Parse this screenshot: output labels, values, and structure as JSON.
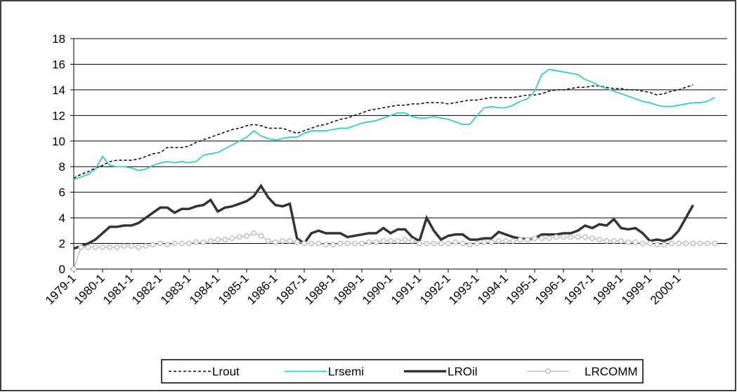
{
  "chart_data": {
    "type": "line",
    "categories": [
      "1979-1",
      null,
      null,
      null,
      "1980-1",
      null,
      null,
      null,
      "1981-1",
      null,
      null,
      null,
      "1982-1",
      null,
      null,
      null,
      "1983-1",
      null,
      null,
      null,
      "1984-1",
      null,
      null,
      null,
      "1985-1",
      null,
      null,
      null,
      "1986-1",
      null,
      null,
      null,
      "1987-1",
      null,
      null,
      null,
      "1988-1",
      null,
      null,
      null,
      "1989-1",
      null,
      null,
      null,
      "1990-1",
      null,
      null,
      null,
      "1991-1",
      null,
      null,
      null,
      "1992-1",
      null,
      null,
      null,
      "1993-1",
      null,
      null,
      null,
      "1994-1",
      null,
      null,
      null,
      "1995-1",
      null,
      null,
      null,
      "1996-1",
      null,
      null,
      null,
      "1997-1",
      null,
      null,
      null,
      "1998-1",
      null,
      null,
      null,
      "1999-1",
      null,
      null,
      null,
      "2000-1",
      null,
      null,
      null,
      null,
      null
    ],
    "series": [
      {
        "name": "Lrout",
        "color": "#000000",
        "line_style": "dashed",
        "line_width": 1.5,
        "values": [
          7.1,
          7.4,
          7.6,
          7.9,
          8.1,
          8.4,
          8.5,
          8.5,
          8.5,
          8.6,
          8.8,
          9.0,
          9.1,
          9.5,
          9.5,
          9.5,
          9.6,
          9.9,
          10.1,
          10.3,
          10.5,
          10.7,
          10.9,
          11.0,
          11.2,
          11.3,
          11.2,
          11.0,
          11.0,
          11.0,
          10.8,
          10.6,
          10.8,
          11.0,
          11.2,
          11.3,
          11.5,
          11.7,
          11.8,
          12.0,
          12.2,
          12.4,
          12.5,
          12.6,
          12.7,
          12.8,
          12.8,
          12.9,
          12.9,
          13.0,
          13.0,
          13.0,
          12.9,
          13.0,
          13.1,
          13.2,
          13.2,
          13.3,
          13.4,
          13.4,
          13.4,
          13.4,
          13.5,
          13.6,
          13.6,
          13.7,
          13.9,
          14.0,
          14.0,
          14.1,
          14.2,
          14.2,
          14.3,
          14.3,
          14.2,
          14.1,
          14.1,
          14.0,
          14.0,
          13.9,
          13.8,
          13.6,
          13.7,
          13.9,
          14.0,
          14.2,
          14.4,
          null,
          null,
          null
        ]
      },
      {
        "name": "Lrsemi",
        "color": "#33cccc",
        "line_style": "solid",
        "line_width": 1.8,
        "values": [
          7.0,
          7.2,
          7.4,
          7.8,
          8.8,
          8.1,
          8.0,
          8.0,
          7.9,
          7.7,
          7.8,
          8.1,
          8.3,
          8.4,
          8.3,
          8.4,
          8.3,
          8.4,
          8.9,
          9.0,
          9.1,
          9.4,
          9.7,
          10.0,
          10.3,
          10.8,
          10.4,
          10.2,
          10.1,
          10.2,
          10.3,
          10.3,
          10.6,
          10.8,
          10.8,
          10.8,
          10.9,
          11.0,
          11.0,
          11.2,
          11.4,
          11.5,
          11.6,
          11.8,
          12.0,
          12.2,
          12.2,
          11.9,
          11.8,
          11.8,
          11.9,
          11.8,
          11.7,
          11.5,
          11.3,
          11.3,
          12.0,
          12.6,
          12.7,
          12.6,
          12.6,
          12.8,
          13.1,
          13.3,
          13.9,
          15.2,
          15.6,
          15.5,
          15.4,
          15.3,
          15.2,
          14.8,
          14.6,
          14.3,
          14.1,
          13.9,
          13.7,
          13.5,
          13.3,
          13.1,
          13.0,
          12.8,
          12.7,
          12.7,
          12.8,
          12.9,
          13.0,
          13.0,
          13.1,
          13.4
        ]
      },
      {
        "name": "LROil",
        "color": "#333333",
        "line_style": "solid",
        "line_width": 3.5,
        "values": [
          1.6,
          1.8,
          2.0,
          2.3,
          2.8,
          3.3,
          3.3,
          3.4,
          3.4,
          3.6,
          4.0,
          4.4,
          4.8,
          4.8,
          4.4,
          4.7,
          4.7,
          4.9,
          5.0,
          5.4,
          4.5,
          4.8,
          4.9,
          5.1,
          5.3,
          5.7,
          6.5,
          5.6,
          5.0,
          4.9,
          5.1,
          2.4,
          2.0,
          2.8,
          3.0,
          2.8,
          2.8,
          2.8,
          2.5,
          2.6,
          2.7,
          2.8,
          2.8,
          3.2,
          2.8,
          3.1,
          3.1,
          2.5,
          2.2,
          4.0,
          3.0,
          2.3,
          2.6,
          2.7,
          2.7,
          2.3,
          2.3,
          2.4,
          2.4,
          2.9,
          2.7,
          2.5,
          2.4,
          2.3,
          2.4,
          2.7,
          2.7,
          2.7,
          2.8,
          2.8,
          3.0,
          3.4,
          3.2,
          3.5,
          3.4,
          3.9,
          3.2,
          3.1,
          3.2,
          2.8,
          2.2,
          2.3,
          2.2,
          2.4,
          3.0,
          4.0,
          5.0,
          null,
          null,
          null
        ]
      },
      {
        "name": "LRCOMM",
        "color": "#c0c0c0",
        "line_style": "solid",
        "line_width": 1.5,
        "marker": "circle",
        "values": [
          0,
          1.7,
          1.7,
          1.7,
          1.7,
          1.7,
          1.7,
          1.8,
          1.8,
          1.7,
          1.8,
          1.9,
          2.0,
          1.9,
          2.0,
          2.0,
          2.0,
          2.1,
          2.1,
          2.2,
          2.3,
          2.3,
          2.4,
          2.5,
          2.6,
          2.8,
          2.6,
          2.2,
          2.1,
          2.2,
          2.2,
          2.1,
          2.0,
          2.0,
          2.0,
          1.9,
          1.9,
          2.0,
          2.0,
          2.0,
          2.0,
          2.1,
          2.1,
          2.2,
          2.2,
          2.2,
          2.3,
          2.2,
          2.0,
          2.0,
          2.0,
          2.0,
          2.0,
          2.1,
          2.0,
          1.9,
          2.0,
          2.1,
          2.1,
          2.2,
          2.2,
          2.2,
          2.3,
          2.3,
          2.4,
          2.4,
          2.4,
          2.5,
          2.5,
          2.5,
          2.5,
          2.5,
          2.4,
          2.3,
          2.2,
          2.2,
          2.2,
          2.1,
          2.1,
          2.0,
          2.0,
          1.9,
          1.9,
          2.0,
          2.0,
          2.0,
          2.0,
          2.0,
          2.0,
          2.0
        ]
      }
    ],
    "ylim": [
      0,
      18
    ],
    "yticks": [
      0,
      2,
      4,
      6,
      8,
      10,
      12,
      14,
      16,
      18
    ],
    "grid": true,
    "legend": "bottom"
  }
}
